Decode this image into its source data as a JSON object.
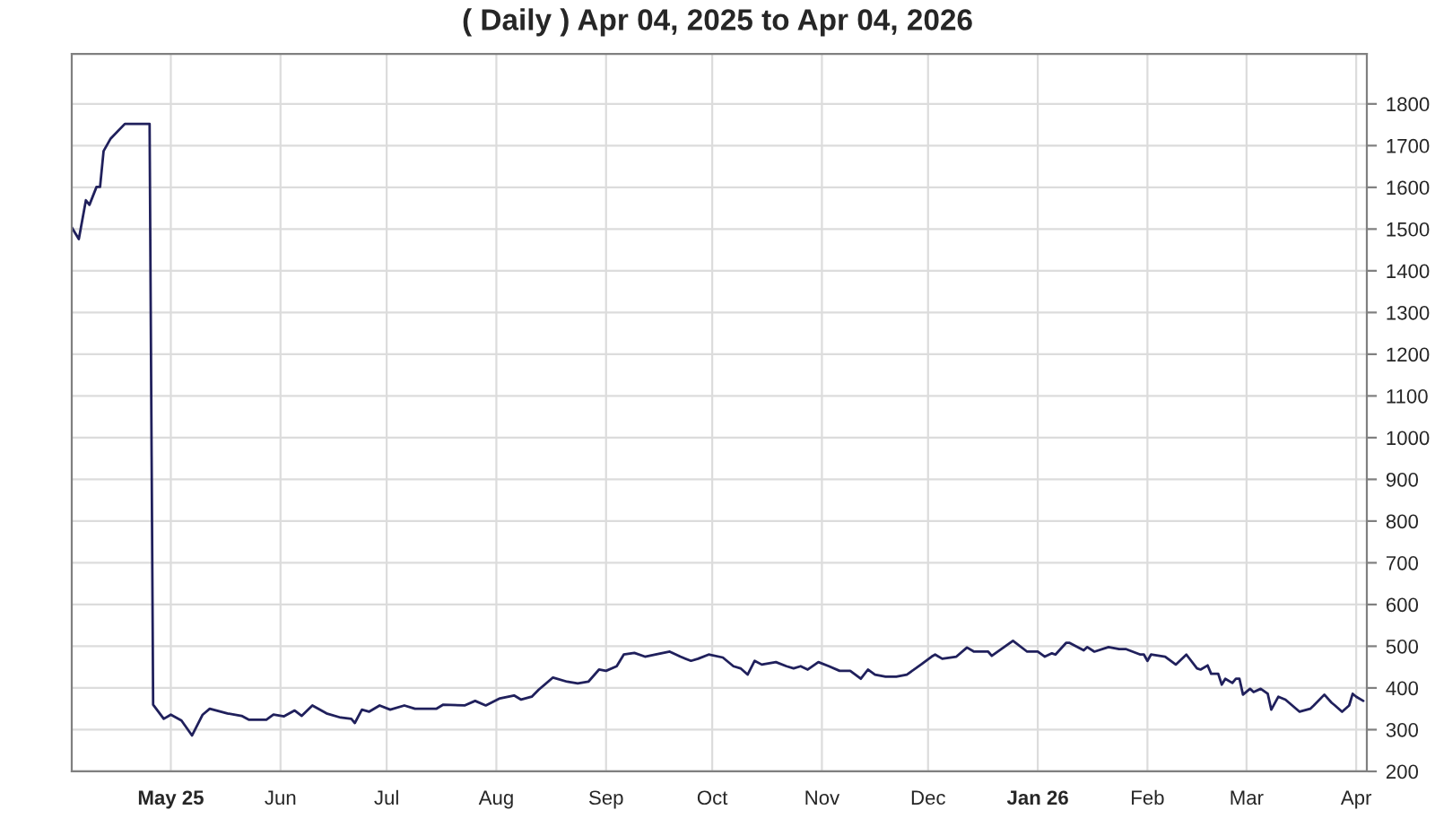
{
  "chart_data": {
    "type": "line",
    "title": "( Daily ) Apr 04, 2025 to Apr 04, 2026",
    "x": [
      "2025-04-03",
      "2025-04-05",
      "2025-04-07",
      "2025-04-08",
      "2025-04-10",
      "2025-04-11",
      "2025-04-12",
      "2025-04-14",
      "2025-04-18",
      "2025-04-25",
      "2025-04-26",
      "2025-04-29",
      "2025-05-01",
      "2025-05-04",
      "2025-05-07",
      "2025-05-10",
      "2025-05-12",
      "2025-05-17",
      "2025-05-21",
      "2025-05-23",
      "2025-05-28",
      "2025-05-30",
      "2025-06-02",
      "2025-06-05",
      "2025-06-07",
      "2025-06-10",
      "2025-06-14",
      "2025-06-18",
      "2025-06-21",
      "2025-06-22",
      "2025-06-24",
      "2025-06-26",
      "2025-06-29",
      "2025-07-02",
      "2025-07-06",
      "2025-07-09",
      "2025-07-15",
      "2025-07-17",
      "2025-07-23",
      "2025-07-26",
      "2025-07-29",
      "2025-08-02",
      "2025-08-06",
      "2025-08-08",
      "2025-08-11",
      "2025-08-13",
      "2025-08-17",
      "2025-08-21",
      "2025-08-24",
      "2025-08-27",
      "2025-08-30",
      "2025-09-01",
      "2025-09-04",
      "2025-09-06",
      "2025-09-09",
      "2025-09-12",
      "2025-09-15",
      "2025-09-19",
      "2025-09-22",
      "2025-09-25",
      "2025-09-27",
      "2025-09-30",
      "2025-10-04",
      "2025-10-07",
      "2025-10-09",
      "2025-10-11",
      "2025-10-13",
      "2025-10-15",
      "2025-10-19",
      "2025-10-22",
      "2025-10-24",
      "2025-10-26",
      "2025-10-28",
      "2025-10-31",
      "2025-11-03",
      "2025-11-06",
      "2025-11-09",
      "2025-11-12",
      "2025-11-14",
      "2025-11-16",
      "2025-11-19",
      "2025-11-22",
      "2025-11-25",
      "2025-11-29",
      "2025-12-02",
      "2025-12-03",
      "2025-12-05",
      "2025-12-09",
      "2025-12-12",
      "2025-12-14",
      "2025-12-18",
      "2025-12-19",
      "2025-12-25",
      "2025-12-29",
      "2026-01-01",
      "2026-01-03",
      "2026-01-05",
      "2026-01-06",
      "2026-01-09",
      "2026-01-10",
      "2026-01-14",
      "2026-01-15",
      "2026-01-17",
      "2026-01-21",
      "2026-01-24",
      "2026-01-26",
      "2026-01-30",
      "2026-01-31",
      "2026-02-01",
      "2026-02-02",
      "2026-02-06",
      "2026-02-09",
      "2026-02-12",
      "2026-02-15",
      "2026-02-16",
      "2026-02-18",
      "2026-02-19",
      "2026-02-21",
      "2026-02-22",
      "2026-02-23",
      "2026-02-25",
      "2026-02-26",
      "2026-02-27",
      "2026-02-28",
      "2026-03-02",
      "2026-03-03",
      "2026-03-05",
      "2026-03-07",
      "2026-03-08",
      "2026-03-10",
      "2026-03-12",
      "2026-03-16",
      "2026-03-19",
      "2026-03-20",
      "2026-03-23",
      "2026-03-25",
      "2026-03-26",
      "2026-03-28",
      "2026-03-30",
      "2026-03-31",
      "2026-04-01",
      "2026-04-03"
    ],
    "series": [
      {
        "color": "#20205c",
        "values": [
          1504,
          1476,
          1569,
          1558,
          1601,
          1601,
          1687,
          1717,
          1752,
          1752,
          360,
          326,
          336,
          322,
          286,
          336,
          350,
          339,
          333,
          324,
          324,
          336,
          332,
          346,
          333,
          358,
          339,
          329,
          326,
          316,
          348,
          343,
          358,
          348,
          358,
          350,
          350,
          360,
          358,
          369,
          358,
          375,
          382,
          372,
          379,
          396,
          425,
          415,
          411,
          415,
          444,
          441,
          452,
          480,
          484,
          475,
          480,
          487,
          475,
          465,
          470,
          480,
          473,
          452,
          447,
          432,
          465,
          456,
          462,
          452,
          447,
          452,
          444,
          462,
          452,
          441,
          441,
          422,
          444,
          432,
          427,
          427,
          432,
          456,
          475,
          480,
          470,
          475,
          497,
          487,
          487,
          477,
          513,
          487,
          487,
          475,
          483,
          480,
          508,
          508,
          490,
          498,
          487,
          498,
          493,
          493,
          480,
          480,
          465,
          480,
          475,
          456,
          480,
          447,
          444,
          454,
          434,
          434,
          408,
          422,
          412,
          422,
          422,
          384,
          398,
          390,
          398,
          386,
          348,
          379,
          372,
          343,
          350,
          358,
          384,
          365,
          358,
          343,
          358,
          386,
          379,
          369
        ]
      }
    ],
    "xlim": [
      "2025-04-03",
      "2026-04-04"
    ],
    "xticks": [
      {
        "value": "2025-05-01",
        "label": "May 25"
      },
      {
        "value": "2025-06-01",
        "label": "Jun"
      },
      {
        "value": "2025-07-01",
        "label": "Jul"
      },
      {
        "value": "2025-08-01",
        "label": "Aug"
      },
      {
        "value": "2025-09-01",
        "label": "Sep"
      },
      {
        "value": "2025-10-01",
        "label": "Oct"
      },
      {
        "value": "2025-11-01",
        "label": "Nov"
      },
      {
        "value": "2025-12-01",
        "label": "Dec"
      },
      {
        "value": "2026-01-01",
        "label": "Jan 26"
      },
      {
        "value": "2026-02-01",
        "label": "Feb"
      },
      {
        "value": "2026-03-01",
        "label": "Mar"
      },
      {
        "value": "2026-04-01",
        "label": "Apr"
      }
    ],
    "ylim": [
      200,
      1920
    ],
    "yticks": [
      200,
      300,
      400,
      500,
      600,
      700,
      800,
      900,
      1000,
      1100,
      1200,
      1300,
      1400,
      1500,
      1600,
      1700,
      1800
    ],
    "grid": true,
    "legend": false,
    "marker": "none",
    "line_style": "solid"
  }
}
